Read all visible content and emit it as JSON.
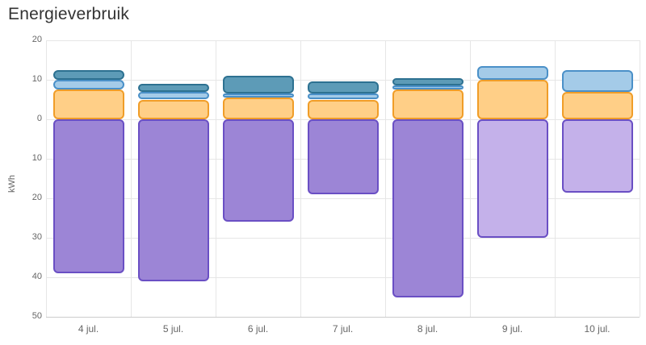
{
  "page": {
    "title": "Energieverbruik"
  },
  "chart_data": {
    "type": "bar",
    "stacked": true,
    "title": "Energieverbruik",
    "xlabel": "",
    "ylabel": "kWh",
    "categories": [
      "4 jul.",
      "5 jul.",
      "6 jul.",
      "7 jul.",
      "8 jul.",
      "9 jul.",
      "10 jul."
    ],
    "y_axis": {
      "ticks": [
        20,
        10,
        0,
        -10,
        -20,
        -30,
        -40,
        -50
      ],
      "tick_labels": [
        "20",
        "10",
        "0",
        "10",
        "20",
        "30",
        "40",
        "50"
      ],
      "unit": "kWh"
    },
    "grid": "on",
    "legend": "none",
    "series": [
      {
        "name": "orange",
        "fill": "#ffcf87",
        "border": "#f09d28",
        "values": [
          7.5,
          5,
          5.5,
          5,
          7.5,
          10,
          7
        ]
      },
      {
        "name": "light-blue",
        "fill": "#a4cbe8",
        "border": "#4a90c8",
        "values": [
          2.5,
          2,
          1,
          1.5,
          1,
          3.5,
          5.5
        ]
      },
      {
        "name": "teal",
        "fill": "#5d9bb7",
        "border": "#2d7191",
        "values": [
          2.5,
          2,
          4.5,
          3,
          2,
          0,
          0
        ]
      },
      {
        "name": "purple",
        "fill": "#9c85d6",
        "border": "#6a4fc4",
        "fills": [
          "#9c85d6",
          "#9c85d6",
          "#9c85d6",
          "#9c85d6",
          "#9c85d6",
          "#c4b1ea",
          "#c4b1ea"
        ],
        "values": [
          -39,
          -41,
          -26,
          -19,
          -45,
          -30,
          -18.5
        ]
      }
    ]
  },
  "colors": {
    "grid": "#e6e6e6",
    "axis_line": "#cccccc",
    "axis_text": "#666666",
    "title_text": "#333333",
    "background": "#ffffff"
  }
}
